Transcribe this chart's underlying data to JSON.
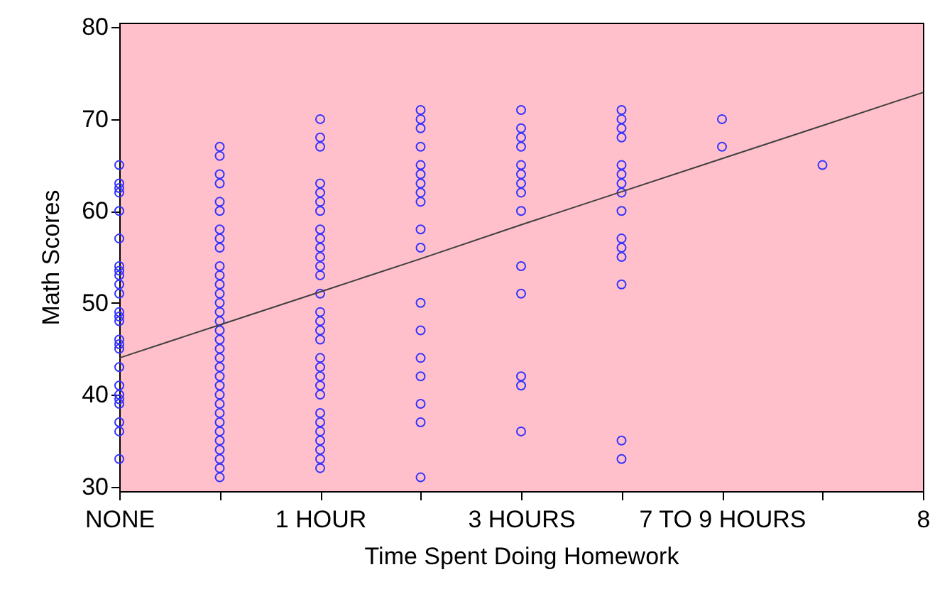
{
  "chart_data": {
    "type": "scatter",
    "xlabel": "Time Spent Doing Homework",
    "ylabel": "Math Scores",
    "categories": [
      "NONE",
      null,
      "1 HOUR",
      null,
      "3 HOURS",
      null,
      "7 TO 9 HOURS",
      null,
      "8"
    ],
    "ylim": [
      29.5,
      80.5
    ],
    "yticks": [
      30,
      40,
      50,
      60,
      70,
      80
    ],
    "grid": false,
    "marker": "circle",
    "series": [
      {
        "color": "#3333ff",
        "values": [
          65,
          67,
          70,
          71,
          71,
          71,
          70,
          65,
          null
        ]
      },
      {
        "color": "#3333ff",
        "values": [
          63,
          66,
          68,
          70,
          69,
          70,
          67,
          null,
          null
        ]
      },
      {
        "color": "#3333ff",
        "values": [
          62.5,
          64,
          67,
          69,
          68,
          69,
          null,
          null,
          null
        ]
      },
      {
        "color": "#3333ff",
        "values": [
          62,
          63,
          63,
          67,
          67,
          68,
          null,
          null,
          null
        ]
      },
      {
        "color": "#3333ff",
        "values": [
          60,
          61,
          62,
          65,
          65,
          65,
          null,
          null,
          null
        ]
      },
      {
        "color": "#3333ff",
        "values": [
          57,
          60,
          61,
          64,
          64,
          64,
          null,
          null,
          null
        ]
      },
      {
        "color": "#3333ff",
        "values": [
          54,
          58,
          60,
          63,
          63,
          63,
          null,
          null,
          null
        ]
      },
      {
        "color": "#3333ff",
        "values": [
          53.5,
          57,
          58,
          62,
          62,
          62,
          null,
          null,
          null
        ]
      },
      {
        "color": "#3333ff",
        "values": [
          53,
          56,
          57,
          61,
          60,
          60,
          null,
          null,
          null
        ]
      },
      {
        "color": "#3333ff",
        "values": [
          52,
          54,
          56,
          58,
          54,
          57,
          null,
          null,
          null
        ]
      },
      {
        "color": "#3333ff",
        "values": [
          51,
          53,
          55,
          56,
          51,
          56,
          null,
          null,
          null
        ]
      },
      {
        "color": "#3333ff",
        "values": [
          49,
          52,
          54,
          50,
          42,
          55,
          null,
          null,
          null
        ]
      },
      {
        "color": "#3333ff",
        "values": [
          48.5,
          51,
          53,
          47,
          41,
          52,
          null,
          null,
          null
        ]
      },
      {
        "color": "#3333ff",
        "values": [
          48,
          50,
          51,
          44,
          36,
          35,
          null,
          null,
          null
        ]
      },
      {
        "color": "#3333ff",
        "values": [
          46,
          49,
          49,
          42,
          null,
          33,
          null,
          null,
          null
        ]
      },
      {
        "color": "#3333ff",
        "values": [
          45.5,
          48,
          48,
          39,
          null,
          null,
          null,
          null,
          null
        ]
      },
      {
        "color": "#3333ff",
        "values": [
          45,
          47,
          47,
          37,
          null,
          null,
          null,
          null,
          null
        ]
      },
      {
        "color": "#3333ff",
        "values": [
          43,
          46,
          46,
          31,
          null,
          null,
          null,
          null,
          null
        ]
      },
      {
        "color": "#3333ff",
        "values": [
          41,
          45,
          44,
          null,
          null,
          null,
          null,
          null,
          null
        ]
      },
      {
        "color": "#3333ff",
        "values": [
          40,
          44,
          43,
          null,
          null,
          null,
          null,
          null,
          null
        ]
      },
      {
        "color": "#3333ff",
        "values": [
          39.5,
          43,
          42,
          null,
          null,
          null,
          null,
          null,
          null
        ]
      },
      {
        "color": "#3333ff",
        "values": [
          39,
          42,
          41,
          null,
          null,
          null,
          null,
          null,
          null
        ]
      },
      {
        "color": "#3333ff",
        "values": [
          37,
          41,
          40,
          null,
          null,
          null,
          null,
          null,
          null
        ]
      },
      {
        "color": "#3333ff",
        "values": [
          36,
          40,
          38,
          null,
          null,
          null,
          null,
          null,
          null
        ]
      },
      {
        "color": "#3333ff",
        "values": [
          33,
          39,
          37,
          null,
          null,
          null,
          null,
          null,
          null
        ]
      },
      {
        "color": "#3333ff",
        "values": [
          null,
          38,
          36,
          null,
          null,
          null,
          null,
          null,
          null
        ]
      },
      {
        "color": "#3333ff",
        "values": [
          null,
          37,
          35,
          null,
          null,
          null,
          null,
          null,
          null
        ]
      },
      {
        "color": "#3333ff",
        "values": [
          null,
          36,
          34,
          null,
          null,
          null,
          null,
          null,
          null
        ]
      },
      {
        "color": "#3333ff",
        "values": [
          null,
          35,
          33,
          null,
          null,
          null,
          null,
          null,
          null
        ]
      },
      {
        "color": "#3333ff",
        "values": [
          null,
          34,
          32,
          null,
          null,
          null,
          null,
          null,
          null
        ]
      },
      {
        "color": "#3333ff",
        "values": [
          null,
          33,
          null,
          null,
          null,
          null,
          null,
          null,
          null
        ]
      },
      {
        "color": "#3333ff",
        "values": [
          null,
          32,
          null,
          null,
          null,
          null,
          null,
          null,
          null
        ]
      },
      {
        "color": "#3333ff",
        "values": [
          null,
          31,
          null,
          null,
          null,
          null,
          null,
          null,
          null
        ]
      },
      {
        "type": "line",
        "marker": "none",
        "color": "#404040",
        "values": [
          44,
          47.6,
          51.2,
          54.8,
          58.5,
          62.1,
          65.7,
          69.3,
          72.9
        ]
      }
    ]
  }
}
